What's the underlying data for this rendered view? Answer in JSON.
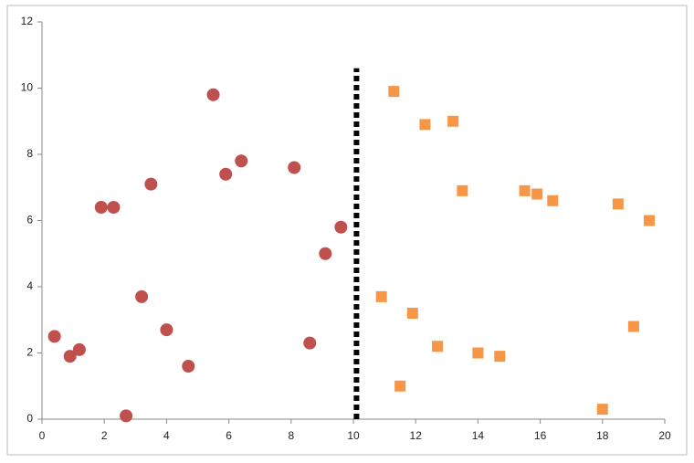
{
  "chart_data": {
    "type": "scatter",
    "xlim": [
      0,
      20
    ],
    "xticks": [
      0,
      2,
      4,
      6,
      8,
      10,
      12,
      14,
      16,
      18,
      20
    ],
    "ylim": [
      0,
      12
    ],
    "yticks": [
      0,
      2,
      4,
      6,
      8,
      10,
      12
    ],
    "series": [
      {
        "color": "#c0504d",
        "marker": "circle",
        "x": [
          0.4,
          0.9,
          1.2,
          1.9,
          2.3,
          2.7,
          3.2,
          3.5,
          4.0,
          4.7,
          5.5,
          5.9,
          6.4,
          8.1,
          8.6,
          9.1,
          9.6
        ],
        "values": [
          2.5,
          1.9,
          2.1,
          6.4,
          6.4,
          0.1,
          3.7,
          7.1,
          2.7,
          1.6,
          9.8,
          7.4,
          7.8,
          7.6,
          2.3,
          5.0,
          5.8
        ]
      },
      {
        "color": "#f79646",
        "marker": "square",
        "x": [
          11.3,
          12.3,
          13.2,
          13.5,
          15.5,
          15.9,
          16.4,
          18.5,
          19.5,
          10.9,
          11.9,
          12.7,
          14.0,
          14.7,
          11.5,
          18.0,
          19.0
        ],
        "values": [
          9.9,
          8.9,
          9.0,
          6.9,
          6.9,
          6.8,
          6.6,
          6.5,
          6.0,
          3.7,
          3.2,
          2.2,
          2.0,
          1.9,
          1.0,
          0.3,
          2.8
        ]
      }
    ],
    "divider": {
      "x": 10.1,
      "y": [
        0,
        10.6
      ],
      "color": "#000000"
    }
  }
}
